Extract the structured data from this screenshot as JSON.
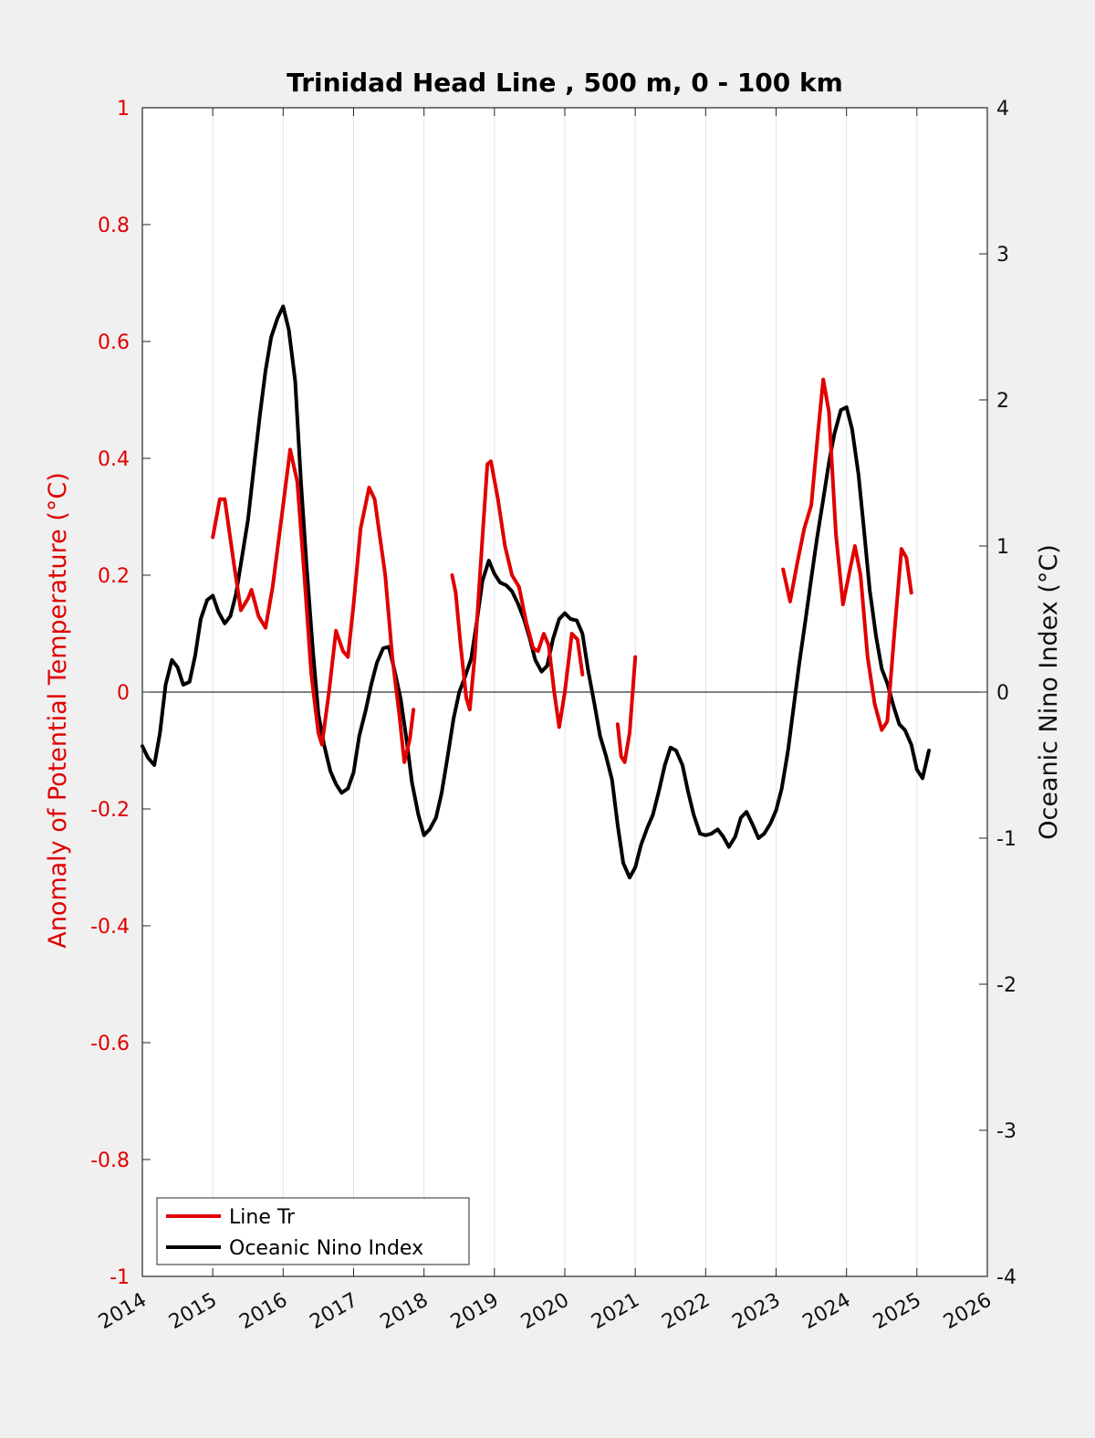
{
  "chart_data": {
    "type": "line",
    "title": "Trinidad Head Line , 500 m, 0 - 100 km",
    "xlabel": "",
    "ylabel_left": "Anomaly of Potential Temperature (°C)",
    "ylabel_right": "Oceanic Nino Index (°C)",
    "xlim": [
      2014,
      2026
    ],
    "ylim_left": [
      -1,
      1
    ],
    "ylim_right": [
      -4,
      4
    ],
    "x_ticks": [
      "2014",
      "2015",
      "2016",
      "2017",
      "2018",
      "2019",
      "2020",
      "2021",
      "2022",
      "2023",
      "2024",
      "2025",
      "2026"
    ],
    "y_ticks_left": [
      "1",
      "0.8",
      "0.6",
      "0.4",
      "0.2",
      "0",
      "-0.2",
      "-0.4",
      "-0.6",
      "-0.8",
      "-1"
    ],
    "y_ticks_right": [
      "4",
      "3",
      "2",
      "1",
      "0",
      "-1",
      "-2",
      "-3",
      "-4"
    ],
    "grid": "vertical",
    "legend_position": "bottom-left",
    "legend": [
      "Line Tr",
      "Oceanic Nino Index"
    ],
    "colors": {
      "line_tr": "#e00000",
      "oni": "#000000",
      "zero_line": "#000000"
    },
    "series": [
      {
        "name": "Line Tr",
        "axis": "left",
        "color": "#e00000",
        "segments": [
          [
            [
              2015.0,
              0.265
            ],
            [
              2015.1,
              0.33
            ],
            [
              2015.17,
              0.33
            ],
            [
              2015.3,
              0.22
            ],
            [
              2015.4,
              0.14
            ],
            [
              2015.5,
              0.16
            ],
            [
              2015.55,
              0.175
            ],
            [
              2015.65,
              0.13
            ],
            [
              2015.75,
              0.11
            ],
            [
              2015.85,
              0.18
            ],
            [
              2016.0,
              0.32
            ],
            [
              2016.1,
              0.415
            ],
            [
              2016.2,
              0.36
            ],
            [
              2016.3,
              0.2
            ],
            [
              2016.4,
              0.03
            ],
            [
              2016.5,
              -0.07
            ],
            [
              2016.55,
              -0.09
            ],
            [
              2016.65,
              0.0
            ],
            [
              2016.75,
              0.105
            ],
            [
              2016.85,
              0.07
            ],
            [
              2016.92,
              0.06
            ],
            [
              2017.0,
              0.15
            ],
            [
              2017.1,
              0.28
            ],
            [
              2017.22,
              0.35
            ],
            [
              2017.3,
              0.33
            ],
            [
              2017.45,
              0.2
            ],
            [
              2017.55,
              0.06
            ],
            [
              2017.65,
              -0.04
            ],
            [
              2017.72,
              -0.12
            ],
            [
              2017.8,
              -0.08
            ],
            [
              2017.85,
              -0.03
            ]
          ],
          [
            [
              2018.4,
              0.2
            ],
            [
              2018.45,
              0.17
            ],
            [
              2018.52,
              0.08
            ],
            [
              2018.6,
              -0.01
            ],
            [
              2018.65,
              -0.03
            ],
            [
              2018.72,
              0.06
            ],
            [
              2018.8,
              0.21
            ],
            [
              2018.9,
              0.39
            ],
            [
              2018.95,
              0.395
            ],
            [
              2019.05,
              0.33
            ],
            [
              2019.15,
              0.25
            ],
            [
              2019.25,
              0.2
            ],
            [
              2019.35,
              0.18
            ],
            [
              2019.45,
              0.12
            ],
            [
              2019.55,
              0.075
            ],
            [
              2019.62,
              0.07
            ],
            [
              2019.7,
              0.1
            ],
            [
              2019.77,
              0.08
            ],
            [
              2019.85,
              0.0
            ],
            [
              2019.92,
              -0.06
            ],
            [
              2020.0,
              0.0
            ],
            [
              2020.1,
              0.1
            ],
            [
              2020.18,
              0.09
            ],
            [
              2020.25,
              0.03
            ]
          ],
          [
            [
              2020.75,
              -0.055
            ],
            [
              2020.8,
              -0.11
            ],
            [
              2020.85,
              -0.12
            ],
            [
              2020.92,
              -0.07
            ],
            [
              2021.0,
              0.06
            ]
          ],
          [
            [
              2023.1,
              0.21
            ],
            [
              2023.2,
              0.155
            ],
            [
              2023.3,
              0.22
            ],
            [
              2023.4,
              0.28
            ],
            [
              2023.5,
              0.32
            ],
            [
              2023.6,
              0.45
            ],
            [
              2023.67,
              0.535
            ],
            [
              2023.75,
              0.48
            ],
            [
              2023.85,
              0.27
            ],
            [
              2023.95,
              0.15
            ],
            [
              2024.05,
              0.21
            ],
            [
              2024.12,
              0.25
            ],
            [
              2024.2,
              0.2
            ],
            [
              2024.3,
              0.06
            ],
            [
              2024.4,
              -0.02
            ],
            [
              2024.5,
              -0.065
            ],
            [
              2024.58,
              -0.05
            ],
            [
              2024.68,
              0.1
            ],
            [
              2024.78,
              0.245
            ],
            [
              2024.85,
              0.23
            ],
            [
              2024.92,
              0.17
            ]
          ]
        ]
      },
      {
        "name": "Oceanic Nino Index",
        "axis": "right",
        "color": "#000000",
        "segments": [
          [
            [
              2014.0,
              -0.37
            ],
            [
              2014.08,
              -0.45
            ],
            [
              2014.17,
              -0.5
            ],
            [
              2014.25,
              -0.28
            ],
            [
              2014.33,
              0.05
            ],
            [
              2014.42,
              0.22
            ],
            [
              2014.5,
              0.17
            ],
            [
              2014.58,
              0.05
            ],
            [
              2014.67,
              0.07
            ],
            [
              2014.75,
              0.25
            ],
            [
              2014.83,
              0.5
            ],
            [
              2014.92,
              0.63
            ],
            [
              2015.0,
              0.66
            ],
            [
              2015.08,
              0.55
            ],
            [
              2015.17,
              0.47
            ],
            [
              2015.25,
              0.52
            ],
            [
              2015.33,
              0.67
            ],
            [
              2015.42,
              0.94
            ],
            [
              2015.5,
              1.18
            ],
            [
              2015.58,
              1.52
            ],
            [
              2015.67,
              1.9
            ],
            [
              2015.75,
              2.2
            ],
            [
              2015.83,
              2.43
            ],
            [
              2015.92,
              2.56
            ],
            [
              2016.0,
              2.64
            ],
            [
              2016.08,
              2.48
            ],
            [
              2016.17,
              2.13
            ],
            [
              2016.25,
              1.46
            ],
            [
              2016.33,
              0.88
            ],
            [
              2016.42,
              0.3
            ],
            [
              2016.5,
              -0.15
            ],
            [
              2016.58,
              -0.36
            ],
            [
              2016.67,
              -0.54
            ],
            [
              2016.75,
              -0.63
            ],
            [
              2016.83,
              -0.69
            ],
            [
              2016.92,
              -0.66
            ],
            [
              2017.0,
              -0.55
            ],
            [
              2017.08,
              -0.3
            ],
            [
              2017.17,
              -0.13
            ],
            [
              2017.25,
              0.05
            ],
            [
              2017.33,
              0.2
            ],
            [
              2017.42,
              0.3
            ],
            [
              2017.5,
              0.31
            ],
            [
              2017.58,
              0.15
            ],
            [
              2017.67,
              -0.05
            ],
            [
              2017.75,
              -0.32
            ],
            [
              2017.83,
              -0.62
            ],
            [
              2017.92,
              -0.84
            ],
            [
              2018.0,
              -0.98
            ],
            [
              2018.08,
              -0.94
            ],
            [
              2018.17,
              -0.86
            ],
            [
              2018.25,
              -0.69
            ],
            [
              2018.33,
              -0.46
            ],
            [
              2018.42,
              -0.18
            ],
            [
              2018.5,
              0.0
            ],
            [
              2018.58,
              0.1
            ],
            [
              2018.67,
              0.23
            ],
            [
              2018.75,
              0.48
            ],
            [
              2018.83,
              0.76
            ],
            [
              2018.92,
              0.9
            ],
            [
              2019.0,
              0.81
            ],
            [
              2019.08,
              0.75
            ],
            [
              2019.17,
              0.73
            ],
            [
              2019.25,
              0.69
            ],
            [
              2019.33,
              0.61
            ],
            [
              2019.42,
              0.5
            ],
            [
              2019.5,
              0.37
            ],
            [
              2019.58,
              0.22
            ],
            [
              2019.67,
              0.14
            ],
            [
              2019.75,
              0.18
            ],
            [
              2019.83,
              0.36
            ],
            [
              2019.92,
              0.5
            ],
            [
              2020.0,
              0.54
            ],
            [
              2020.08,
              0.5
            ],
            [
              2020.17,
              0.49
            ],
            [
              2020.25,
              0.4
            ],
            [
              2020.33,
              0.15
            ],
            [
              2020.42,
              -0.08
            ],
            [
              2020.5,
              -0.3
            ],
            [
              2020.58,
              -0.43
            ],
            [
              2020.67,
              -0.6
            ],
            [
              2020.75,
              -0.91
            ],
            [
              2020.83,
              -1.17
            ],
            [
              2020.92,
              -1.27
            ],
            [
              2021.0,
              -1.2
            ],
            [
              2021.08,
              -1.05
            ],
            [
              2021.17,
              -0.93
            ],
            [
              2021.25,
              -0.84
            ],
            [
              2021.33,
              -0.69
            ],
            [
              2021.42,
              -0.5
            ],
            [
              2021.5,
              -0.38
            ],
            [
              2021.58,
              -0.4
            ],
            [
              2021.67,
              -0.5
            ],
            [
              2021.75,
              -0.68
            ],
            [
              2021.83,
              -0.84
            ],
            [
              2021.92,
              -0.97
            ],
            [
              2022.0,
              -0.98
            ],
            [
              2022.08,
              -0.97
            ],
            [
              2022.17,
              -0.94
            ],
            [
              2022.25,
              -0.99
            ],
            [
              2022.33,
              -1.06
            ],
            [
              2022.42,
              -0.99
            ],
            [
              2022.5,
              -0.86
            ],
            [
              2022.58,
              -0.82
            ],
            [
              2022.67,
              -0.91
            ],
            [
              2022.75,
              -1.0
            ],
            [
              2022.83,
              -0.97
            ],
            [
              2022.92,
              -0.9
            ],
            [
              2023.0,
              -0.81
            ],
            [
              2023.08,
              -0.66
            ],
            [
              2023.17,
              -0.4
            ],
            [
              2023.25,
              -0.1
            ],
            [
              2023.33,
              0.2
            ],
            [
              2023.42,
              0.5
            ],
            [
              2023.5,
              0.78
            ],
            [
              2023.58,
              1.05
            ],
            [
              2023.67,
              1.32
            ],
            [
              2023.75,
              1.57
            ],
            [
              2023.83,
              1.77
            ],
            [
              2023.92,
              1.93
            ],
            [
              2024.0,
              1.95
            ],
            [
              2024.08,
              1.8
            ],
            [
              2024.17,
              1.49
            ],
            [
              2024.25,
              1.1
            ],
            [
              2024.33,
              0.7
            ],
            [
              2024.42,
              0.38
            ],
            [
              2024.5,
              0.16
            ],
            [
              2024.58,
              0.06
            ],
            [
              2024.67,
              -0.1
            ],
            [
              2024.75,
              -0.22
            ],
            [
              2024.83,
              -0.26
            ],
            [
              2024.92,
              -0.36
            ],
            [
              2025.0,
              -0.53
            ],
            [
              2025.08,
              -0.59
            ],
            [
              2025.17,
              -0.4
            ]
          ]
        ]
      }
    ]
  }
}
